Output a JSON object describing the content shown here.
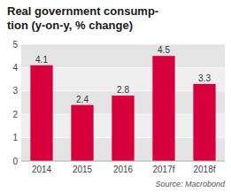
{
  "chart_data": {
    "type": "bar",
    "title": [
      "Real government consump-",
      "tion (y-on-y, % change)"
    ],
    "categories": [
      "2014",
      "2015",
      "2016",
      "2017f",
      "2018f"
    ],
    "values": [
      4.1,
      2.4,
      2.8,
      4.5,
      3.3
    ],
    "color": "#d8003c",
    "ylim": [
      0,
      5
    ],
    "yticks": [
      0,
      1,
      2,
      3,
      4,
      5
    ],
    "grid": true,
    "data_labels": true,
    "source": "Source: Macrobond"
  }
}
